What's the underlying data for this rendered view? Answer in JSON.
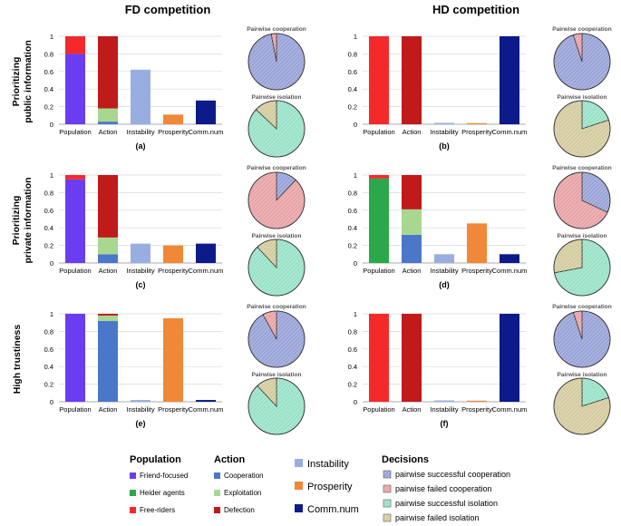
{
  "columns": [
    "FD competition",
    "HD competition"
  ],
  "rows": [
    "Prioritizing public information",
    "Prioritizing private information",
    "High trustiness"
  ],
  "pie_titles": {
    "coop": "Pairwise cooperation",
    "iso": "Pairwise isolation"
  },
  "categories": [
    "Population",
    "Action",
    "Instability",
    "Prosperity",
    "Comm.num"
  ],
  "y_ticks": [
    "0",
    "0.2",
    "0.4",
    "0.6",
    "0.8",
    "1"
  ],
  "colors": {
    "friend": "#6a3df0",
    "heider": "#2aa84a",
    "free": "#f42a2a",
    "coop": "#4a78c8",
    "exploit": "#a8d890",
    "defect": "#c01a1a",
    "instab": "#98aee0",
    "prosp": "#f08838",
    "comm": "#0c1a8a",
    "dec_sc": "#9aa4d8",
    "dec_fc": "#e8a4a8",
    "dec_si": "#9ae2c8",
    "dec_fi": "#d4cca0"
  },
  "chart_data": [
    {
      "type": "bar",
      "label": "(a)",
      "ylim": [
        0,
        1
      ],
      "population": [
        0.8,
        0,
        0.2
      ],
      "action": [
        0.03,
        0.15,
        0.82
      ],
      "instability": 0.62,
      "prosperity": 0.11,
      "comm_num": 0.27,
      "pie_cooperation": [
        0.97,
        0.03
      ],
      "pie_isolation": [
        0.87,
        0.13
      ]
    },
    {
      "type": "bar",
      "label": "(b)",
      "ylim": [
        0,
        1
      ],
      "population": [
        0,
        0,
        1.0
      ],
      "action": [
        0,
        0,
        1.0
      ],
      "instability": 0.015,
      "prosperity": 0.01,
      "comm_num": 1.0,
      "pie_cooperation": [
        0.95,
        0.05
      ],
      "pie_isolation": [
        0.2,
        0.8
      ]
    },
    {
      "type": "bar",
      "label": "(c)",
      "ylim": [
        0,
        1
      ],
      "population": [
        0.95,
        0,
        0.05
      ],
      "action": [
        0.1,
        0.19,
        0.71
      ],
      "instability": 0.22,
      "prosperity": 0.2,
      "comm_num": 0.22,
      "pie_cooperation": [
        0.12,
        0.88
      ],
      "pie_isolation": [
        0.88,
        0.12
      ]
    },
    {
      "type": "bar",
      "label": "(d)",
      "ylim": [
        0,
        1
      ],
      "population": [
        0,
        0.96,
        0.04
      ],
      "action": [
        0.32,
        0.29,
        0.39
      ],
      "instability": 0.1,
      "prosperity": 0.45,
      "comm_num": 0.1,
      "pie_cooperation": [
        0.32,
        0.68
      ],
      "pie_isolation": [
        0.72,
        0.28
      ]
    },
    {
      "type": "bar",
      "label": "(e)",
      "ylim": [
        0,
        1
      ],
      "population": [
        1.0,
        0,
        0
      ],
      "action": [
        0.92,
        0.06,
        0.02
      ],
      "instability": 0.02,
      "prosperity": 0.95,
      "comm_num": 0.02,
      "pie_cooperation": [
        0.92,
        0.08
      ],
      "pie_isolation": [
        0.88,
        0.12
      ]
    },
    {
      "type": "bar",
      "label": "(f)",
      "ylim": [
        0,
        1
      ],
      "population": [
        0,
        0,
        1.0
      ],
      "action": [
        0,
        0,
        1.0
      ],
      "instability": 0.015,
      "prosperity": 0.01,
      "comm_num": 1.0,
      "pie_cooperation": [
        0.95,
        0.05
      ],
      "pie_isolation": [
        0.2,
        0.8
      ]
    }
  ],
  "legend": {
    "population_title": "Population",
    "population": [
      "Friend-focused",
      "Heider agents",
      "Free-riders"
    ],
    "action_title": "Action",
    "action": [
      "Cooperation",
      "Exploitation",
      "Defection"
    ],
    "metrics": [
      "Instability",
      "Prosperity",
      "Comm.num"
    ],
    "decisions_title": "Decisions",
    "decisions": [
      "pairwise successful cooperation",
      "pairwise failed cooperation",
      "pairwise successful isolation",
      "pairwise failed isolation"
    ]
  }
}
